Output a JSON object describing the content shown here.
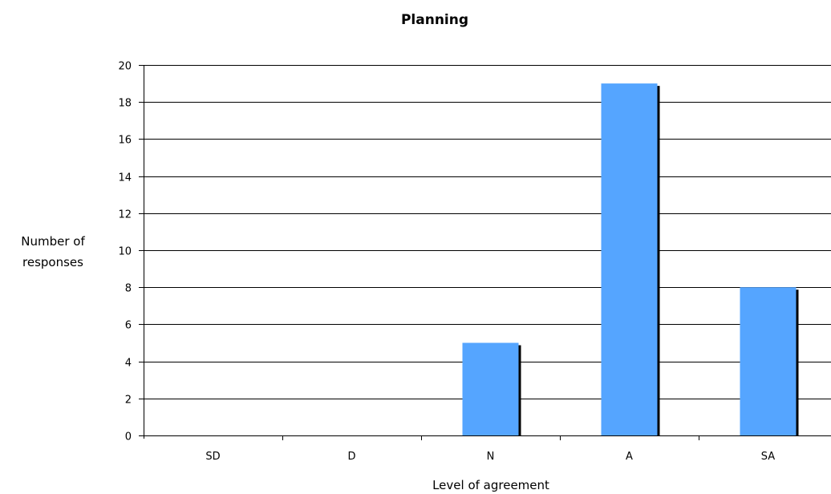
{
  "chart_data": {
    "type": "bar",
    "title": "Planning",
    "xlabel": "Level of agreement",
    "ylabel_lines": [
      "Number of",
      "responses"
    ],
    "categories": [
      "SD",
      "D",
      "N",
      "A",
      "SA"
    ],
    "values": [
      0,
      0,
      5,
      19,
      8
    ],
    "ylim": [
      0,
      20
    ],
    "yticks": [
      0,
      2,
      4,
      6,
      8,
      10,
      12,
      14,
      16,
      18,
      20
    ],
    "grid": true,
    "legend": "none",
    "colors": {
      "bar": "#55a5ff",
      "bar_shadow": "#000000",
      "grid": "#000000",
      "axis": "#000000"
    }
  }
}
